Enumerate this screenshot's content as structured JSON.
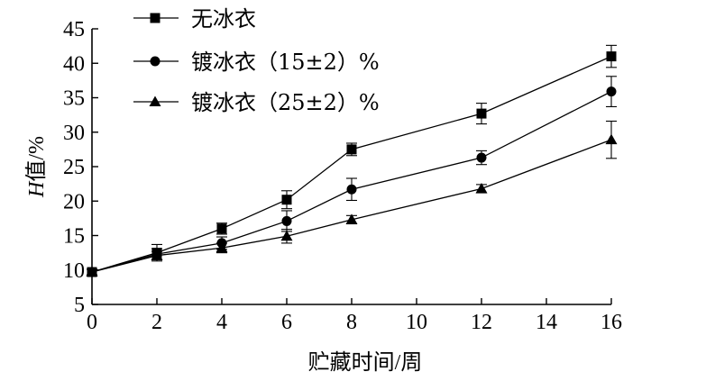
{
  "chart_data": {
    "type": "line",
    "title": "",
    "xlabel": "贮藏时间/周",
    "ylabel_italic": "H",
    "ylabel_rest": "值/%",
    "x": [
      0,
      2,
      4,
      6,
      8,
      12,
      16
    ],
    "xlim": [
      0,
      16
    ],
    "ylim": [
      5,
      45
    ],
    "xticks": [
      "0",
      "2",
      "4",
      "6",
      "8",
      "10",
      "12",
      "14",
      "16"
    ],
    "yticks": [
      "5",
      "10",
      "15",
      "20",
      "25",
      "30",
      "35",
      "40",
      "45"
    ],
    "grid": false,
    "legend_position": "top-left",
    "series": [
      {
        "name": "无冰衣",
        "marker": "square",
        "values": [
          9.7,
          12.5,
          16.0,
          20.2,
          27.5,
          32.7,
          41.0
        ],
        "errors": [
          0.4,
          1.2,
          0.8,
          1.3,
          0.9,
          1.5,
          1.6
        ]
      },
      {
        "name": "镀冰衣（15±2）%",
        "marker": "circle",
        "values": [
          9.7,
          12.3,
          13.9,
          17.1,
          21.7,
          26.3,
          35.9
        ],
        "errors": [
          0.4,
          0.8,
          0.9,
          1.5,
          1.6,
          1.0,
          2.2
        ]
      },
      {
        "name": "镀冰衣（25±2）%",
        "marker": "triangle",
        "values": [
          9.7,
          12.1,
          13.2,
          14.9,
          17.3,
          21.8,
          28.9
        ],
        "errors": [
          0.4,
          0.6,
          0.7,
          1.0,
          0.6,
          0.6,
          2.7
        ]
      }
    ]
  }
}
